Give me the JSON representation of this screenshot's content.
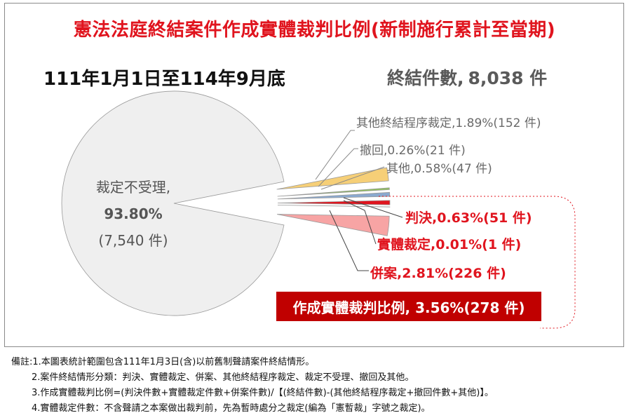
{
  "title": "憲法法庭終結案件作成實體裁判比例(新制施行累計至當期)",
  "period": "111年1月1日至114年9月底",
  "total": {
    "label": "終結件數,",
    "value": "8,038 件"
  },
  "chart_data": {
    "type": "pie",
    "slices": [
      {
        "name": "裁定不受理",
        "percent": 93.8,
        "count": 7540,
        "color": "#efefef",
        "label_lines": [
          "裁定不受理,",
          "93.80%",
          "(7,540 件)"
        ]
      },
      {
        "name": "其他終結程序裁定",
        "percent": 1.89,
        "count": 152,
        "color": "#f6cf77",
        "label": "其他終結程序裁定,1.89%(152 件)"
      },
      {
        "name": "撤回",
        "percent": 0.26,
        "count": 21,
        "color": "#8fc15b",
        "label": "撤回,0.26%(21 件)"
      },
      {
        "name": "其他",
        "percent": 0.58,
        "count": 47,
        "color": "#8aa9cf",
        "label": "其他,0.58%(47 件)"
      },
      {
        "name": "判決",
        "percent": 0.63,
        "count": 51,
        "color": "#e0141e",
        "label": "判決,0.63%(51 件)"
      },
      {
        "name": "實體裁定",
        "percent": 0.01,
        "count": 1,
        "color": "#444444",
        "label": "實體裁定,0.01%(1 件)"
      },
      {
        "name": "併案",
        "percent": 2.81,
        "count": 226,
        "color": "#f7a4a4",
        "label": "併案,2.81%(226 件)"
      }
    ],
    "summary": "作成實體裁判比例, 3.56%(278 件)"
  },
  "notes": [
    "備註:1.本圖表統計範圍包含111年1月3日(含)以前舊制聲請案件終結情形。",
    "2.案件終結情形分類：判決、實體裁定、併案、其他終結程序裁定、裁定不受理、撤回及其他。",
    "3.作成實體裁判比例=(判決件數+實體裁定件數+併案件數)/【(終結件數)-(其他終結程序裁定+撤回件數+其他)】。",
    "4.實體裁定件數：不含聲請之本案做出裁判前，先為暫時處分之裁定(編為「憲暫裁」字號之裁定)。"
  ]
}
